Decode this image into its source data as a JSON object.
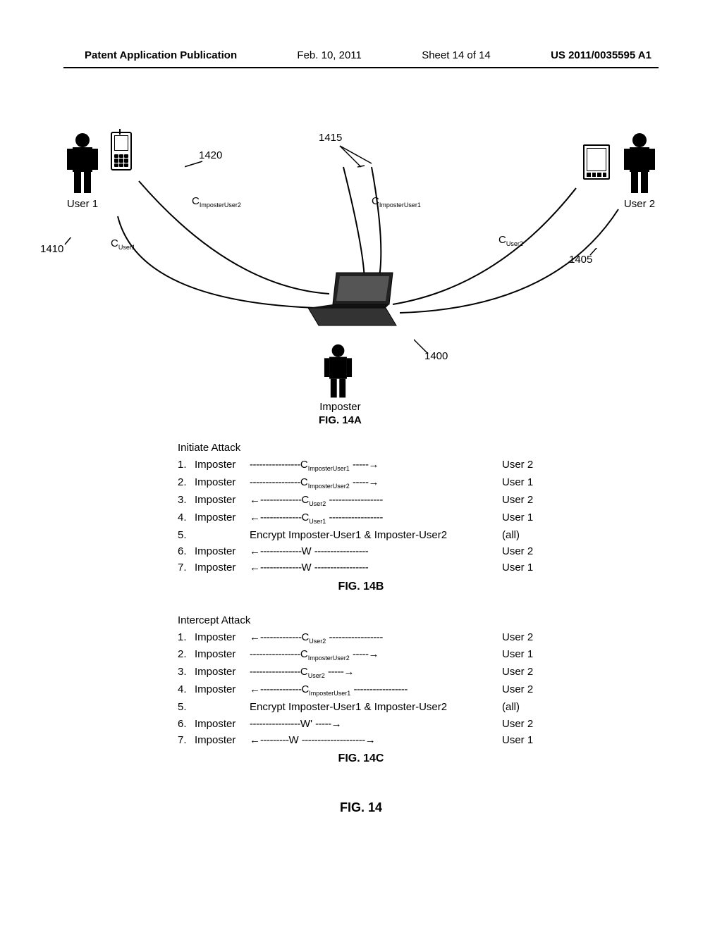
{
  "header": {
    "pub": "Patent Application Publication",
    "date": "Feb. 10, 2011",
    "sheet": "Sheet 14 of 14",
    "docnum": "US 2011/0035595 A1"
  },
  "labels": {
    "user1": "User 1",
    "user2": "User 2",
    "imposter": "Imposter",
    "fig14a": "FIG. 14A",
    "fig14b": "FIG. 14B",
    "fig14c": "FIG. 14C",
    "fig14": "FIG. 14",
    "ref1410": "1410",
    "ref1420": "1420",
    "ref1415": "1415",
    "ref1405": "1405",
    "ref1400": "1400",
    "c_user1": "C",
    "c_user1_sub": "User1",
    "c_impuser2": "C",
    "c_impuser2_sub": "ImposterUser2",
    "c_impuser1": "C",
    "c_impuser1_sub": "ImposterUser1",
    "c_user2": "C",
    "c_user2_sub": "User2"
  },
  "initiate": {
    "title": "Initiate Attack",
    "rows": [
      {
        "n": "1.",
        "left": "Imposter",
        "arrow": "right",
        "sym": "C",
        "sub": "ImposterUser1",
        "right": "User 2"
      },
      {
        "n": "2.",
        "left": "Imposter",
        "arrow": "right",
        "sym": "C",
        "sub": "ImposterUser2",
        "right": "User 1"
      },
      {
        "n": "3.",
        "left": "Imposter",
        "arrow": "left",
        "sym": "C",
        "sub": "User2",
        "right": "User 2"
      },
      {
        "n": "4.",
        "left": "Imposter",
        "arrow": "left",
        "sym": "C",
        "sub": "User1",
        "right": "User 1"
      },
      {
        "n": "5.",
        "encrypt": "Encrypt Imposter-User1 & Imposter-User2",
        "right": "(all)"
      },
      {
        "n": "6.",
        "left": "Imposter",
        "arrow": "left",
        "sym": "W",
        "sub": "",
        "right": "User 2"
      },
      {
        "n": "7.",
        "left": "Imposter",
        "arrow": "left",
        "sym": "W",
        "sub": "",
        "right": "User 1"
      }
    ]
  },
  "intercept": {
    "title": "Intercept Attack",
    "rows": [
      {
        "n": "1.",
        "left": "Imposter",
        "arrow": "left",
        "sym": "C",
        "sub": "User2",
        "right": "User 2"
      },
      {
        "n": "2.",
        "left": "Imposter",
        "arrow": "right",
        "sym": "C",
        "sub": "ImposterUser2",
        "right": "User 1"
      },
      {
        "n": "3.",
        "left": "Imposter",
        "arrow": "right",
        "sym": "C",
        "sub": "User2",
        "right": "User 2"
      },
      {
        "n": "4.",
        "left": "Imposter",
        "arrow": "left",
        "sym": "C",
        "sub": "ImposterUser1",
        "right": "User 2"
      },
      {
        "n": "5.",
        "encrypt": "Encrypt Imposter-User1 & Imposter-User2",
        "right": "(all)"
      },
      {
        "n": "6.",
        "left": "Imposter",
        "arrow": "right",
        "sym": "W'",
        "sub": "",
        "right": "User 2"
      },
      {
        "n": "7.",
        "left": "Imposter",
        "arrow": "both",
        "sym": "W",
        "sub": "",
        "right": "User 1"
      }
    ]
  }
}
